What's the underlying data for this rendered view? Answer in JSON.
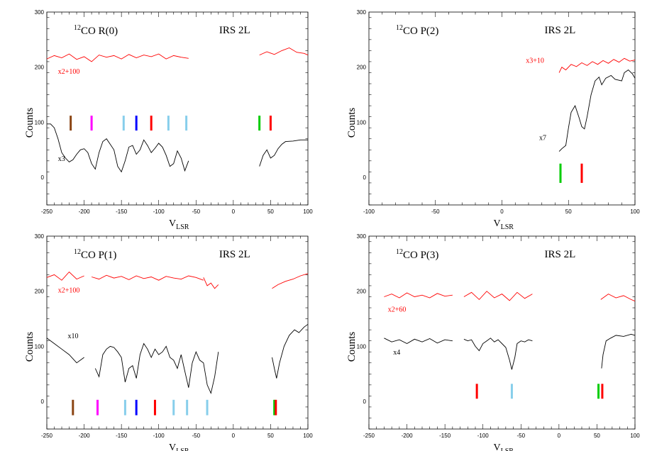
{
  "chart_data": [
    {
      "type": "line",
      "title": "CO R(0)",
      "title_sup": "12",
      "target": "IRS 2L",
      "xlabel": "V",
      "xlabel_sub": "LSR",
      "ylabel": "Counts",
      "xlim": [
        -250,
        100
      ],
      "ylim": [
        -50,
        300
      ],
      "xticks": [
        -250,
        -200,
        -150,
        -100,
        -50,
        0,
        50,
        100
      ],
      "yticks": [
        0,
        100,
        200,
        300
      ],
      "annotations": [
        {
          "text": "x2+100",
          "x": -235,
          "y": 188,
          "color": "#ff0000"
        },
        {
          "text": "x3",
          "x": -235,
          "y": 30,
          "color": "#000000"
        }
      ],
      "series": [
        {
          "name": "x2+100",
          "color": "#ff0000",
          "x": [
            -250,
            -240,
            -230,
            -220,
            -210,
            -200,
            -190,
            -180,
            -170,
            -160,
            -150,
            -140,
            -130,
            -120,
            -110,
            -100,
            -90,
            -80,
            -70,
            -60
          ],
          "y": [
            215,
            221,
            217,
            224,
            214,
            219,
            210,
            222,
            218,
            221,
            215,
            223,
            217,
            222,
            219,
            224,
            215,
            221,
            218,
            216
          ]
        },
        {
          "name": "x2+100",
          "color": "#ff0000",
          "x": [
            35,
            45,
            55,
            65,
            75,
            85,
            95,
            100
          ],
          "y": [
            222,
            228,
            223,
            230,
            235,
            227,
            225,
            222
          ]
        },
        {
          "name": "x3",
          "color": "#000000",
          "x": [
            -250,
            -245,
            -240,
            -235,
            -230,
            -225,
            -220,
            -215,
            -210,
            -205,
            -200,
            -195,
            -190,
            -185,
            -180,
            -175,
            -170,
            -165,
            -160,
            -155,
            -150,
            -145,
            -140,
            -135,
            -130,
            -125,
            -120,
            -115,
            -110,
            -105,
            -100,
            -95,
            -90,
            -85,
            -80,
            -75,
            -70,
            -65,
            -60
          ],
          "y": [
            97,
            97,
            90,
            70,
            45,
            35,
            28,
            32,
            42,
            50,
            52,
            45,
            25,
            15,
            45,
            65,
            70,
            60,
            50,
            20,
            10,
            30,
            55,
            58,
            42,
            50,
            68,
            58,
            45,
            53,
            62,
            55,
            40,
            20,
            25,
            48,
            35,
            12,
            30
          ]
        },
        {
          "name": "x3",
          "color": "#000000",
          "x": [
            35,
            40,
            45,
            50,
            55,
            60,
            65,
            70,
            80,
            90,
            100
          ],
          "y": [
            20,
            40,
            50,
            35,
            40,
            52,
            60,
            65,
            66,
            68,
            68
          ]
        }
      ],
      "markers": [
        {
          "x": -218,
          "color": "#8b4513"
        },
        {
          "x": -190,
          "color": "#ff00ff"
        },
        {
          "x": -147,
          "color": "#87ceeb"
        },
        {
          "x": -130,
          "color": "#0000ff"
        },
        {
          "x": -110,
          "color": "#ff0000"
        },
        {
          "x": -87,
          "color": "#87ceeb"
        },
        {
          "x": -63,
          "color": "#87ceeb"
        },
        {
          "x": 35,
          "color": "#00cc00"
        },
        {
          "x": 50,
          "color": "#ff0000"
        }
      ]
    },
    {
      "type": "line",
      "title": "CO P(2)",
      "title_sup": "12",
      "target": "IRS 2L",
      "xlabel": "V",
      "xlabel_sub": "LSR",
      "ylabel": "Counts",
      "xlim": [
        -100,
        100
      ],
      "ylim": [
        -50,
        300
      ],
      "xticks": [
        -100,
        -50,
        0,
        50,
        100
      ],
      "yticks": [
        0,
        100,
        200,
        300
      ],
      "annotations": [
        {
          "text": "x3+10",
          "x": 18,
          "y": 208,
          "color": "#ff0000"
        },
        {
          "text": "x7",
          "x": 28,
          "y": 68,
          "color": "#000000"
        }
      ],
      "series": [
        {
          "name": "x3+10",
          "color": "#ff0000",
          "x": [
            43,
            45,
            48,
            52,
            56,
            60,
            64,
            68,
            72,
            76,
            80,
            84,
            88,
            92,
            96,
            100
          ],
          "y": [
            190,
            200,
            195,
            205,
            201,
            208,
            203,
            210,
            205,
            212,
            207,
            214,
            209,
            216,
            211,
            213
          ]
        },
        {
          "name": "x7",
          "color": "#000000",
          "x": [
            43,
            45,
            48,
            50,
            52,
            55,
            58,
            60,
            62,
            64,
            67,
            70,
            73,
            75,
            78,
            82,
            85,
            90,
            92,
            95,
            98,
            100
          ],
          "y": [
            47,
            52,
            58,
            90,
            118,
            130,
            108,
            92,
            88,
            110,
            150,
            175,
            182,
            168,
            180,
            185,
            178,
            175,
            190,
            195,
            188,
            180
          ]
        }
      ],
      "markers": [
        {
          "x": 44,
          "color": "#00cc00"
        },
        {
          "x": 60,
          "color": "#ff0000"
        }
      ]
    },
    {
      "type": "line",
      "title": "CO P(1)",
      "title_sup": "12",
      "target": "IRS 2L",
      "xlabel": "V",
      "xlabel_sub": "LSR",
      "ylabel": "Counts",
      "xlim": [
        -250,
        100
      ],
      "ylim": [
        -50,
        300
      ],
      "xticks": [
        -250,
        -200,
        -150,
        -100,
        -50,
        0,
        50,
        100
      ],
      "yticks": [
        0,
        100,
        200,
        300
      ],
      "annotations": [
        {
          "text": "x2+100",
          "x": -235,
          "y": 198,
          "color": "#ff0000"
        },
        {
          "text": "x10",
          "x": -222,
          "y": 115,
          "color": "#000000"
        }
      ],
      "series": [
        {
          "name": "x2+100",
          "color": "#ff0000",
          "x": [
            -250,
            -240,
            -230,
            -220,
            -210,
            -200
          ],
          "y": [
            225,
            230,
            220,
            235,
            222,
            228
          ]
        },
        {
          "name": "x2+100",
          "color": "#ff0000",
          "x": [
            -190,
            -180,
            -170,
            -160,
            -150,
            -140,
            -130,
            -120,
            -110,
            -100,
            -90,
            -80,
            -70,
            -60,
            -50,
            -40
          ],
          "y": [
            226,
            222,
            229,
            224,
            227,
            221,
            228,
            223,
            226,
            220,
            227,
            224,
            222,
            228,
            225,
            220
          ]
        },
        {
          "name": "x2+100",
          "color": "#ff0000",
          "x": [
            -40,
            -35,
            -30,
            -25,
            -20
          ],
          "y": [
            225,
            210,
            215,
            205,
            212
          ]
        },
        {
          "name": "x2+100",
          "color": "#ff0000",
          "x": [
            52,
            60,
            70,
            80,
            90,
            100
          ],
          "y": [
            205,
            212,
            218,
            222,
            228,
            232
          ]
        },
        {
          "name": "x10",
          "color": "#000000",
          "x": [
            -250,
            -240,
            -230,
            -220,
            -210,
            -200
          ],
          "y": [
            115,
            105,
            95,
            85,
            70,
            80
          ]
        },
        {
          "name": "x10",
          "color": "#000000",
          "x": [
            -185,
            -180,
            -175,
            -170,
            -165,
            -160,
            -155,
            -150,
            -145,
            -140,
            -135,
            -130,
            -125,
            -120,
            -115,
            -110,
            -105,
            -100,
            -95,
            -90,
            -85,
            -80,
            -75,
            -70,
            -65,
            -60,
            -55,
            -50,
            -45,
            -40,
            -35,
            -30,
            -25,
            -20
          ],
          "y": [
            60,
            45,
            85,
            95,
            100,
            98,
            90,
            80,
            35,
            60,
            65,
            42,
            85,
            105,
            95,
            80,
            95,
            85,
            90,
            100,
            80,
            75,
            60,
            85,
            55,
            25,
            70,
            90,
            75,
            70,
            30,
            15,
            45,
            90
          ]
        },
        {
          "name": "x10",
          "color": "#000000",
          "x": [
            52,
            55,
            58,
            62,
            68,
            75,
            82,
            88,
            95,
            100
          ],
          "y": [
            80,
            60,
            42,
            70,
            100,
            120,
            130,
            125,
            135,
            140
          ]
        }
      ],
      "markers": [
        {
          "x": -215,
          "color": "#8b4513"
        },
        {
          "x": -182,
          "color": "#ff00ff"
        },
        {
          "x": -145,
          "color": "#87ceeb"
        },
        {
          "x": -130,
          "color": "#0000ff"
        },
        {
          "x": -105,
          "color": "#ff0000"
        },
        {
          "x": -80,
          "color": "#87ceeb"
        },
        {
          "x": -62,
          "color": "#87ceeb"
        },
        {
          "x": -35,
          "color": "#87ceeb"
        },
        {
          "x": 55,
          "color": "#00cc00"
        },
        {
          "x": 57,
          "color": "#ff0000"
        }
      ]
    },
    {
      "type": "line",
      "title": "CO P(3)",
      "title_sup": "12",
      "target": "IRS 2L",
      "xlabel": "V",
      "xlabel_sub": "LSR",
      "ylabel": "Counts",
      "xlim": [
        -250,
        100
      ],
      "ylim": [
        -50,
        300
      ],
      "xticks": [
        -250,
        -200,
        -150,
        -100,
        -50,
        0,
        50,
        100
      ],
      "yticks": [
        0,
        100,
        200,
        300
      ],
      "annotations": [
        {
          "text": "x2+60",
          "x": -225,
          "y": 163,
          "color": "#ff0000"
        },
        {
          "text": "x4",
          "x": -218,
          "y": 85,
          "color": "#000000"
        }
      ],
      "series": [
        {
          "name": "x2+60",
          "color": "#ff0000",
          "x": [
            -230,
            -220,
            -210,
            -200,
            -190,
            -180,
            -170,
            -160,
            -150,
            -140
          ],
          "y": [
            190,
            195,
            188,
            197,
            190,
            193,
            188,
            196,
            191,
            193
          ]
        },
        {
          "name": "x2+60",
          "color": "#ff0000",
          "x": [
            -125,
            -115,
            -105,
            -95,
            -85,
            -75,
            -65,
            -55,
            -45,
            -35
          ],
          "y": [
            190,
            198,
            185,
            200,
            188,
            195,
            183,
            198,
            187,
            195
          ]
        },
        {
          "name": "x2+60",
          "color": "#ff0000",
          "x": [
            55,
            65,
            75,
            85,
            95,
            100
          ],
          "y": [
            185,
            195,
            188,
            192,
            185,
            182
          ]
        },
        {
          "name": "x4",
          "color": "#000000",
          "x": [
            -230,
            -220,
            -210,
            -200,
            -190,
            -180,
            -170,
            -160,
            -150,
            -140
          ],
          "y": [
            115,
            108,
            112,
            105,
            113,
            108,
            114,
            106,
            112,
            110
          ]
        },
        {
          "name": "x4",
          "color": "#000000",
          "x": [
            -125,
            -120,
            -115,
            -110,
            -105,
            -100,
            -95,
            -90,
            -85,
            -80,
            -75,
            -70,
            -65,
            -62,
            -58,
            -55,
            -50,
            -45,
            -40,
            -35
          ],
          "y": [
            113,
            110,
            112,
            100,
            92,
            105,
            110,
            115,
            108,
            112,
            105,
            98,
            75,
            58,
            80,
            105,
            110,
            108,
            112,
            110
          ]
        },
        {
          "name": "x4",
          "color": "#000000",
          "x": [
            56,
            58,
            62,
            68,
            75,
            85,
            95,
            100
          ],
          "y": [
            60,
            85,
            110,
            115,
            120,
            118,
            122,
            120
          ]
        }
      ],
      "markers": [
        {
          "x": -108,
          "color": "#ff0000"
        },
        {
          "x": -62,
          "color": "#87ceeb"
        },
        {
          "x": 52,
          "color": "#00cc00"
        },
        {
          "x": 57,
          "color": "#ff0000"
        }
      ]
    }
  ]
}
